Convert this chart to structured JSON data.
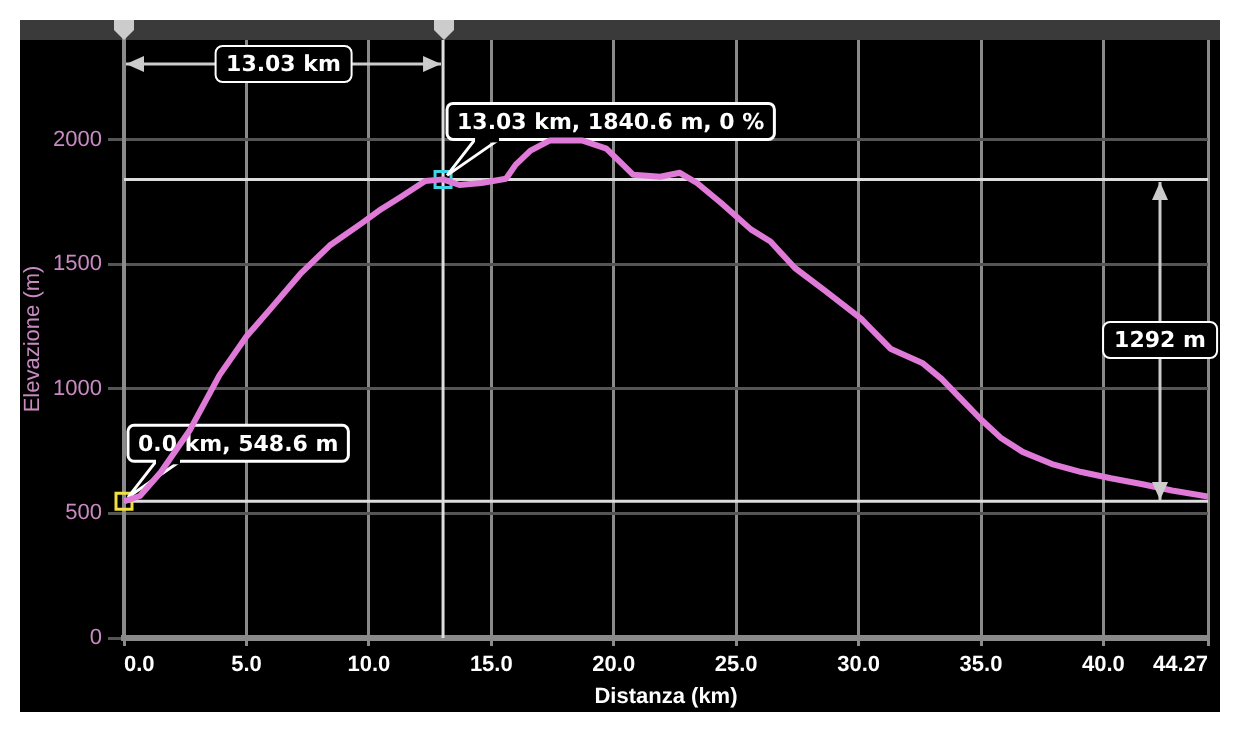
{
  "chart_data": {
    "type": "line",
    "xlabel": "Distanza (km)",
    "ylabel": "Elevazione (m)",
    "x": [
      0,
      0.65,
      1.5,
      2.7,
      3.9,
      5.0,
      6.0,
      7.2,
      8.4,
      9.7,
      10.5,
      11.3,
      12.3,
      13.03,
      13.7,
      14.6,
      15.6,
      16.0,
      16.6,
      17.4,
      18.7,
      19.7,
      20.3,
      20.8,
      21.9,
      22.7,
      23.4,
      24.4,
      25.6,
      26.4,
      27.4,
      28.6,
      30.1,
      31.3,
      32.6,
      33.4,
      34.2,
      35.0,
      35.8,
      36.7,
      37.9,
      39.1,
      40.3,
      41.6,
      42.8,
      44.27
    ],
    "series": [
      {
        "color": "#e07ad8",
        "values": [
          548.6,
          570,
          665,
          836,
          1055,
          1210,
          1323,
          1461,
          1575,
          1664,
          1721,
          1770,
          1834,
          1840.6,
          1818,
          1826,
          1843,
          1900,
          1956,
          1997,
          1997,
          1964,
          1907,
          1859,
          1851,
          1867,
          1826,
          1745,
          1640,
          1591,
          1485,
          1396,
          1282,
          1161,
          1104,
          1039,
          958,
          877,
          804,
          747,
          698,
          666,
          641,
          617,
          592,
          568
        ]
      }
    ],
    "xlim": [
      0,
      44.27
    ],
    "xticks": [
      {
        "value": 0,
        "label": "0.0"
      },
      {
        "value": 5,
        "label": "5.0"
      },
      {
        "value": 10,
        "label": "10.0"
      },
      {
        "value": 15,
        "label": "15.0"
      },
      {
        "value": 20,
        "label": "20.0"
      },
      {
        "value": 25,
        "label": "25.0"
      },
      {
        "value": 30,
        "label": "30.0"
      },
      {
        "value": 35,
        "label": "35.0"
      },
      {
        "value": 40,
        "label": "40.0"
      },
      44.27
    ],
    "ylim": [
      0,
      2400
    ],
    "yticks": [
      0,
      500,
      1000,
      1500,
      2000
    ],
    "grid": true,
    "legend": false,
    "marker": "none",
    "line_style": "solid",
    "ref_lines": [
      {
        "axis": "y",
        "value": 1840.6,
        "color": "#dddddd"
      },
      {
        "axis": "y",
        "value": 548.6,
        "color": "#dddddd"
      },
      {
        "axis": "x",
        "value": 13.03,
        "color": "#dddddd"
      }
    ],
    "annotations": [
      {
        "text": "13.03 km, 1840.6 m, 0 %",
        "x": 13.03,
        "y": 1840.6
      },
      {
        "text": "0.0 km, 548.6 m",
        "x": 0,
        "y": 548.6
      },
      "13.03 km",
      "1292 m"
    ]
  }
}
